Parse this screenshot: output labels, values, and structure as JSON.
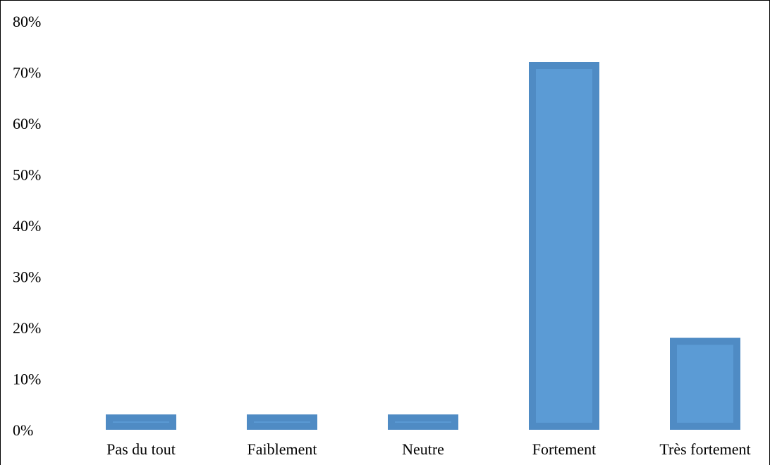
{
  "chart_data": {
    "type": "bar",
    "title": "",
    "xlabel": "",
    "ylabel": "",
    "categories": [
      "Pas du tout",
      "Faiblement",
      "Neutre",
      "Fortement",
      "Très fortement"
    ],
    "values": [
      3,
      3,
      3,
      72,
      18
    ],
    "ylim": [
      0,
      80
    ],
    "y_ticks": [
      "0%",
      "10%",
      "20%",
      "30%",
      "40%",
      "50%",
      "60%",
      "70%",
      "80%"
    ],
    "y_tick_values": [
      0,
      10,
      20,
      30,
      40,
      50,
      60,
      70,
      80
    ],
    "grid": false,
    "legend": "none",
    "colors": {
      "bar_fill": "#5b9bd5",
      "bar_border": "#4f8bc4"
    }
  }
}
